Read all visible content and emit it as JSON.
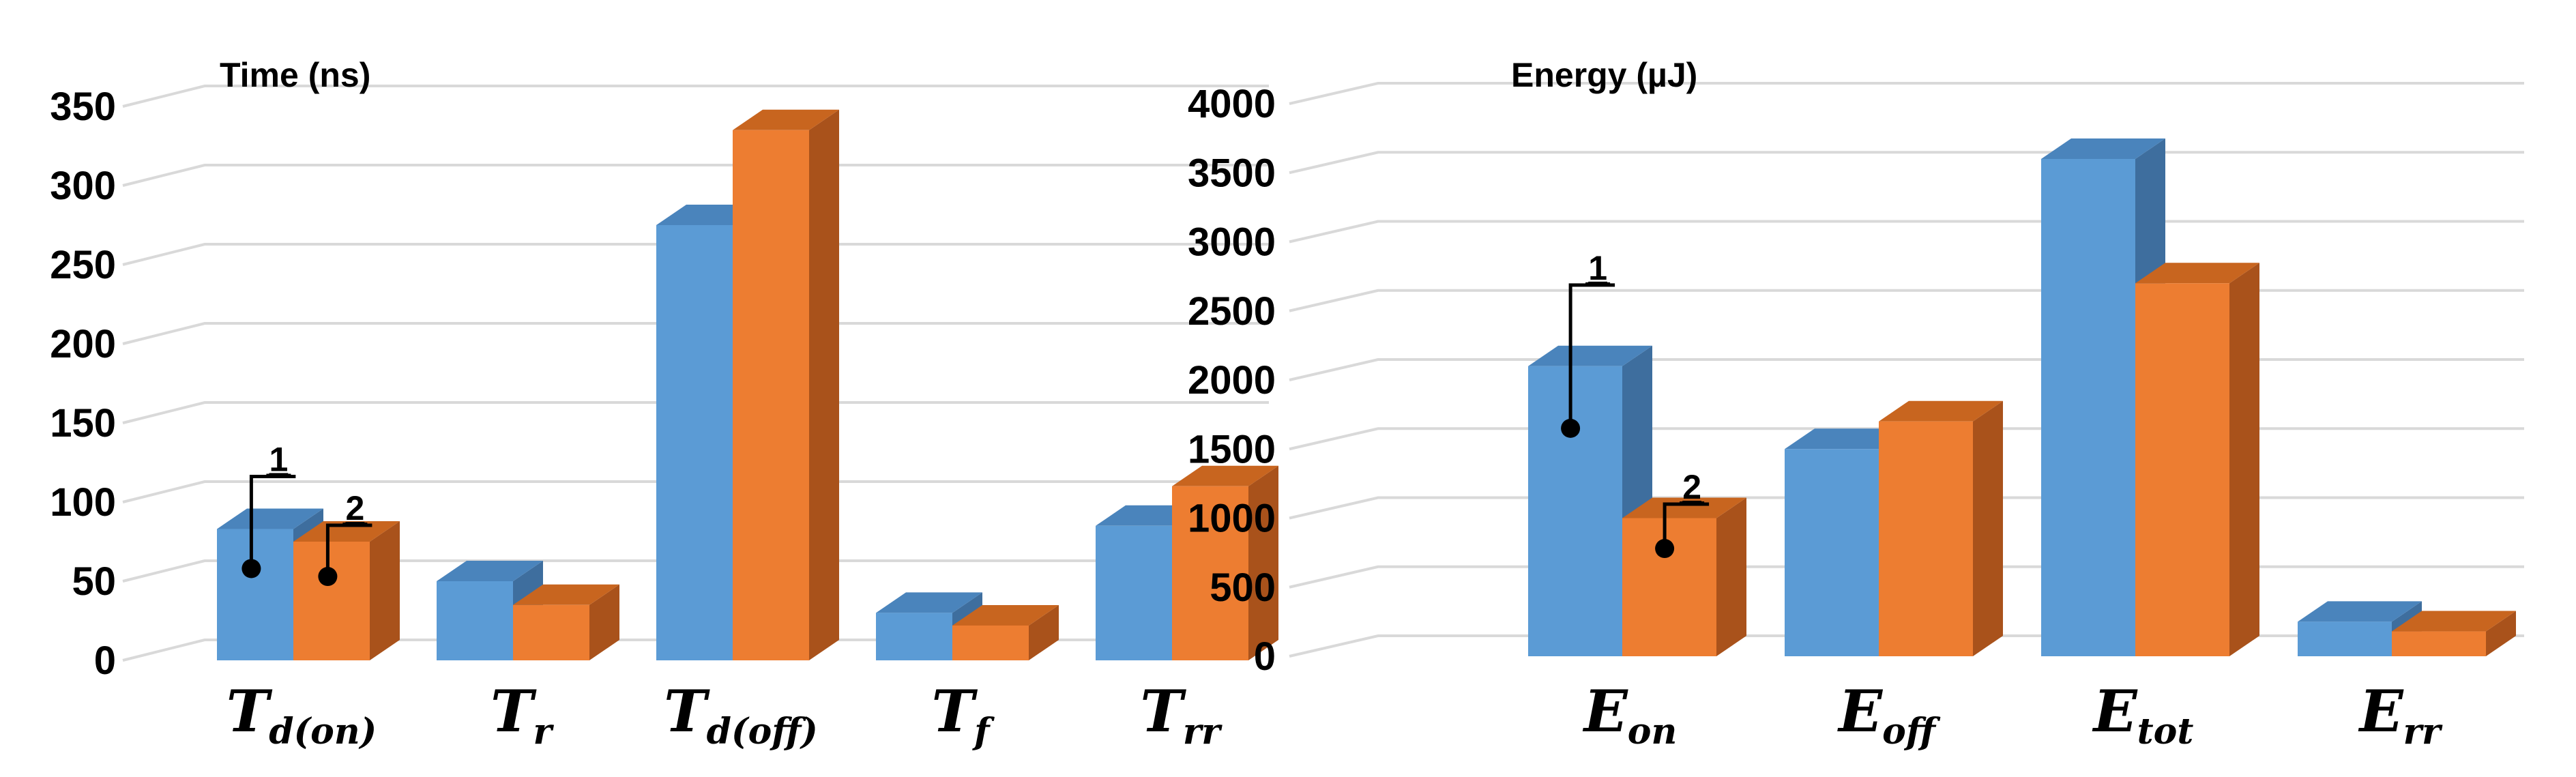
{
  "chart_data": [
    {
      "type": "bar",
      "style": "3d-clustered-column",
      "title": "Time (ns)",
      "ylim": [
        0,
        350
      ],
      "yticks": [
        "0",
        "50",
        "100",
        "150",
        "200",
        "250",
        "300",
        "350"
      ],
      "grid": true,
      "categories": [
        {
          "main": "T",
          "sub": "d(on)"
        },
        {
          "main": "T",
          "sub": "r"
        },
        {
          "main": "T",
          "sub": "d(off)"
        },
        {
          "main": "T",
          "sub": "f"
        },
        {
          "main": "T",
          "sub": "rr"
        }
      ],
      "series": [
        {
          "name": "1",
          "color": "#5b9bd5",
          "top_color": "#4a84bc",
          "side_color": "#3e6e9e",
          "values": [
            83,
            50,
            275,
            30,
            85
          ]
        },
        {
          "name": "2",
          "color": "#ed7d31",
          "top_color": "#c8651f",
          "side_color": "#a9521b",
          "values": [
            75,
            35,
            335,
            22,
            110
          ]
        }
      ],
      "annotations": [
        {
          "label": "1",
          "series": 0,
          "category": 0,
          "point_value": 58
        },
        {
          "label": "2",
          "series": 1,
          "category": 0,
          "point_value": 53
        }
      ]
    },
    {
      "type": "bar",
      "style": "3d-clustered-column",
      "title": "Energy (µJ)",
      "ylim": [
        0,
        4000
      ],
      "yticks": [
        "0",
        "500",
        "1000",
        "1500",
        "2000",
        "2500",
        "3000",
        "3500",
        "4000"
      ],
      "grid": true,
      "categories": [
        {
          "main": "E",
          "sub": "on"
        },
        {
          "main": "E",
          "sub": "off"
        },
        {
          "main": "E",
          "sub": "tot"
        },
        {
          "main": "E",
          "sub": "rr"
        }
      ],
      "series": [
        {
          "name": "1",
          "color": "#5b9bd5",
          "top_color": "#4a84bc",
          "side_color": "#3e6e9e",
          "values": [
            2100,
            1500,
            3600,
            250
          ]
        },
        {
          "name": "2",
          "color": "#ed7d31",
          "top_color": "#c8651f",
          "side_color": "#a9521b",
          "values": [
            1000,
            1700,
            2700,
            180
          ]
        }
      ],
      "annotations": [
        {
          "label": "1",
          "series": 0,
          "category": 0,
          "point_value": 1650
        },
        {
          "label": "2",
          "series": 1,
          "category": 0,
          "point_value": 780
        }
      ]
    }
  ]
}
